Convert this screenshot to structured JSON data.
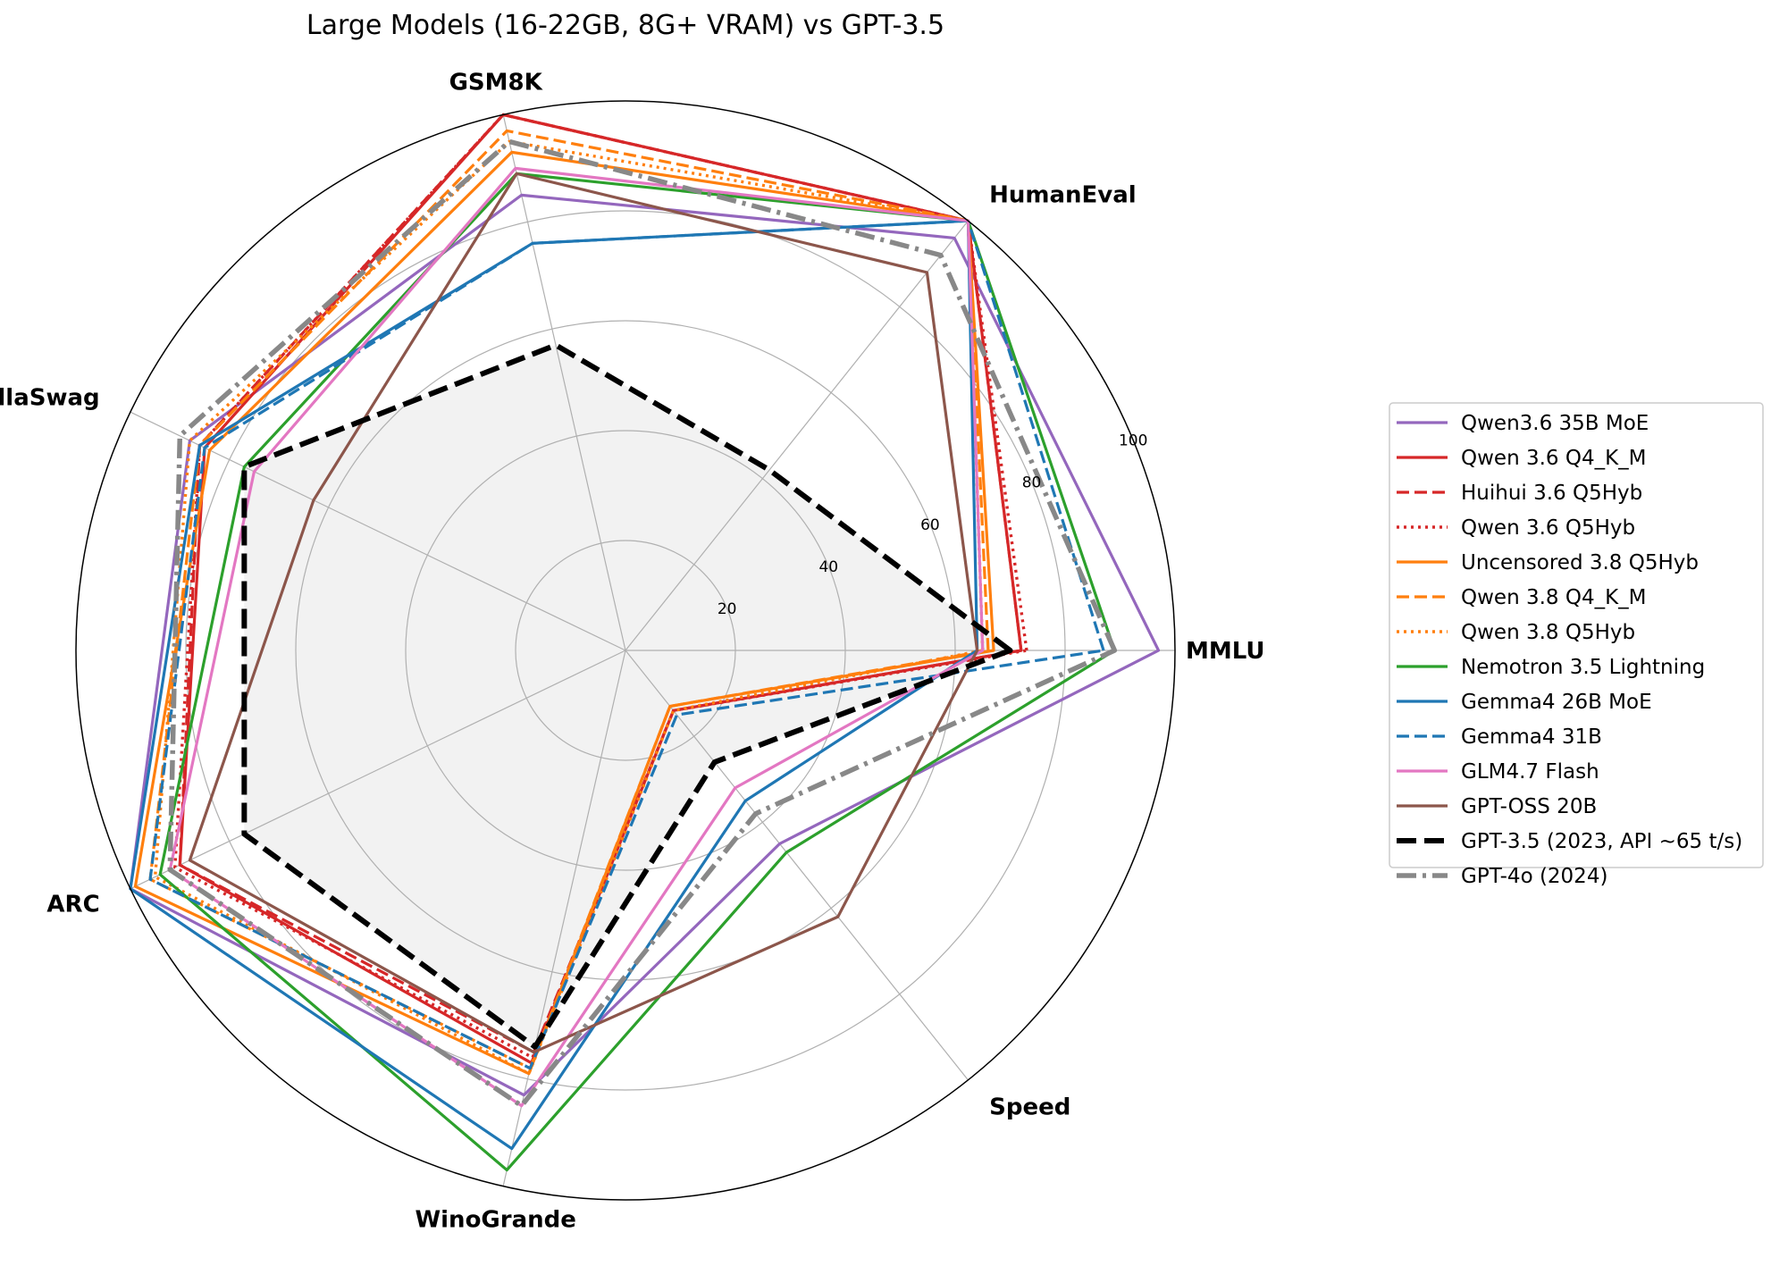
{
  "chart_data": {
    "type": "radar",
    "title": "Large Models (16-22GB, 8G+ VRAM) vs GPT-3.5",
    "axes": [
      "MMLU",
      "HumanEval",
      "GSM8K",
      "HellaSwag",
      "ARC",
      "WinoGrande",
      "Speed"
    ],
    "rlim": [
      0,
      100
    ],
    "rticks": [
      "20",
      "40",
      "60",
      "80",
      "100"
    ],
    "grid": true,
    "legend_position": "right",
    "series": [
      {
        "name": "Qwen3.6 35B MoE",
        "color": "#9467bd",
        "style": "solid",
        "values": [
          97,
          96,
          85,
          88,
          100,
          83,
          45
        ]
      },
      {
        "name": "Qwen 3.6 Q4_K_M",
        "color": "#d62728",
        "style": "solid",
        "values": [
          72,
          100,
          100,
          85,
          90,
          77,
          14
        ]
      },
      {
        "name": "Huihui 3.6 Q5Hyb",
        "color": "#d62728",
        "style": "dashed",
        "values": [
          72,
          100,
          100,
          86,
          90,
          75,
          14
        ]
      },
      {
        "name": "Qwen 3.6 Q5Hyb",
        "color": "#d62728",
        "style": "dotted",
        "values": [
          73,
          100,
          100,
          86,
          91,
          76,
          14
        ]
      },
      {
        "name": "Uncensored 3.8 Q5Hyb",
        "color": "#ff7f0e",
        "style": "solid",
        "values": [
          67,
          100,
          93,
          84,
          99,
          79,
          13
        ]
      },
      {
        "name": "Qwen 3.8 Q4_K_M",
        "color": "#ff7f0e",
        "style": "dashed",
        "values": [
          66,
          100,
          97,
          86,
          96,
          78,
          13
        ]
      },
      {
        "name": "Qwen 3.8 Q5Hyb",
        "color": "#ff7f0e",
        "style": "dotted",
        "values": [
          65,
          100,
          95,
          88,
          95,
          79,
          14
        ]
      },
      {
        "name": "Nemotron 3.5 Lightning",
        "color": "#2ca02c",
        "style": "solid",
        "values": [
          89,
          100,
          89,
          77,
          94,
          97,
          47
        ]
      },
      {
        "name": "Gemma4 26B MoE",
        "color": "#1f77b4",
        "style": "solid",
        "values": [
          64,
          100,
          76,
          86,
          100,
          93,
          35
        ]
      },
      {
        "name": "Gemma4 31B",
        "color": "#1f77b4",
        "style": "dashed",
        "values": [
          87,
          100,
          76,
          85,
          96,
          78,
          15
        ]
      },
      {
        "name": "GLM4.7 Flash",
        "color": "#e377c2",
        "style": "solid",
        "values": [
          65,
          100,
          90,
          75,
          92,
          85,
          32
        ]
      },
      {
        "name": "GPT-OSS 20B",
        "color": "#8c564b",
        "style": "solid",
        "values": [
          64,
          88,
          89,
          63,
          88,
          75,
          62
        ]
      },
      {
        "name": "GPT-3.5 (2023, API ~65 t/s)",
        "color": "#000000",
        "style": "thickdashed",
        "values": [
          70,
          42,
          57,
          77,
          77,
          74,
          26
        ]
      },
      {
        "name": "GPT-4o (2024)",
        "color": "#888888",
        "style": "dashdot",
        "values": [
          89,
          92,
          95,
          90,
          92,
          85,
          38
        ]
      }
    ]
  }
}
